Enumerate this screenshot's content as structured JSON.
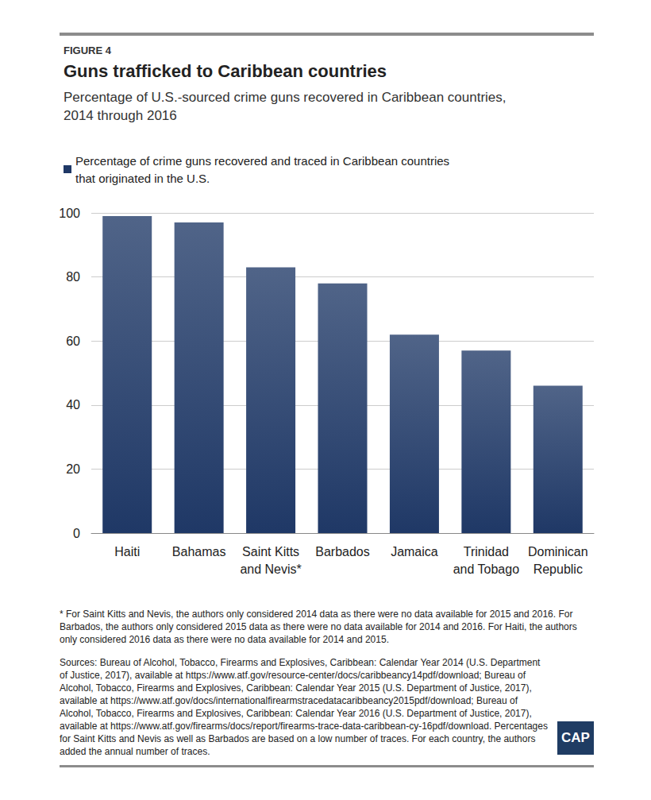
{
  "chart_data": {
    "type": "bar",
    "figure_label": "FIGURE 4",
    "title": "Guns trafficked to Caribbean countries",
    "subtitle": "Percentage of U.S.-sourced crime guns recovered in Caribbean countries,\n2014 through 2016",
    "categories": [
      "Haiti",
      "Bahamas",
      "Saint Kitts\nand Nevis*",
      "Barbados",
      "Jamaica",
      "Trinidad\nand Tobago",
      "Dominican\nRepublic"
    ],
    "series": [
      {
        "name": "Percentage of crime guns recovered and traced in Caribbean countries\nthat originated in the U.S.",
        "color": "#1f3866",
        "values": [
          99,
          97,
          83,
          78,
          62,
          57,
          46
        ]
      }
    ],
    "ylim": [
      0,
      100
    ],
    "yticks": [
      0,
      20,
      40,
      60,
      80,
      100
    ],
    "grid": true,
    "legend": "top-left",
    "footnote": "* For Saint Kitts and Nevis, the authors only considered 2014 data as there were no data available for 2015 and 2016. For Barbados, the authors only considered 2015 data as there were no data available for 2014 and 2016. For Haiti, the authors only considered 2016 data as there were no data available for 2014 and 2015.",
    "source": "Sources: Bureau of Alcohol, Tobacco, Firearms and Explosives, Caribbean: Calendar Year 2014 (U.S. Department of Justice, 2017), available at https://www.atf.gov/resource-center/docs/caribbeancy14pdf/download; Bureau of Alcohol, Tobacco, Firearms and Explosives, Caribbean: Calendar Year 2015 (U.S. Department of Justice, 2017), available at https://www.atf.gov/docs/internationalfirearmstracedatacaribbeancy2015pdf/download; Bureau of Alcohol, Tobacco, Firearms and Explosives, Caribbean: Calendar Year 2016 (U.S. Department of Justice, 2017), available at https://www.atf.gov/firearms/docs/report/firearms-trace-data-caribbean-cy-16pdf/download. Percentages for Saint Kitts and Nevis as well as Barbados are based on a low number of traces. For each country, the authors added the annual number of traces.",
    "logo": "CAP"
  }
}
